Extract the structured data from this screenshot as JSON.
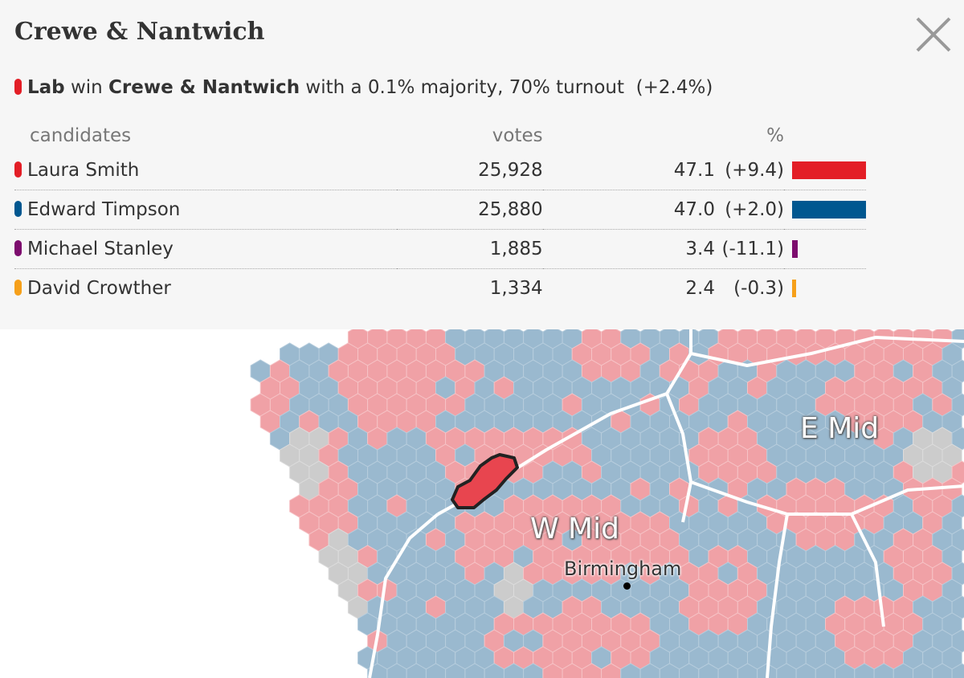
{
  "constituency": {
    "title": "Crewe & Nantwich"
  },
  "summary": {
    "party": "Lab",
    "party_color": "#e31e26",
    "text_win": "win",
    "seat": "Crewe & Nantwich",
    "text_rest": "with a 0.1% majority, 70% turnout",
    "turnout_change": "(+2.4%)"
  },
  "table": {
    "headers": {
      "candidates": "candidates",
      "votes": "votes",
      "pct": "%"
    },
    "rows": [
      {
        "name": "Laura Smith",
        "votes": "25,928",
        "pct": "47.1",
        "change": "(+9.4)",
        "share": 47.1,
        "color": "#e31e26"
      },
      {
        "name": "Edward Timpson",
        "votes": "25,880",
        "pct": "47.0",
        "change": "(+2.0)",
        "share": 47.0,
        "color": "#005790"
      },
      {
        "name": "Michael Stanley",
        "votes": "1,885",
        "pct": "3.4",
        "change": "(-11.1)",
        "share": 3.4,
        "color": "#7d0c6e"
      },
      {
        "name": "David Crowther",
        "votes": "1,334",
        "pct": "2.4",
        "change": "(-0.3)",
        "share": 2.4,
        "color": "#f6a01a"
      }
    ]
  },
  "map": {
    "regions": [
      "W Mid",
      "E Mid"
    ],
    "city": "Birmingham",
    "colors": {
      "lab": "#f0a1a6",
      "con": "#9ab9cf",
      "other": "#cccccc",
      "highlight": "#e8454f",
      "boundary": "#ffffff"
    }
  },
  "icons": {
    "close": "close-icon"
  }
}
